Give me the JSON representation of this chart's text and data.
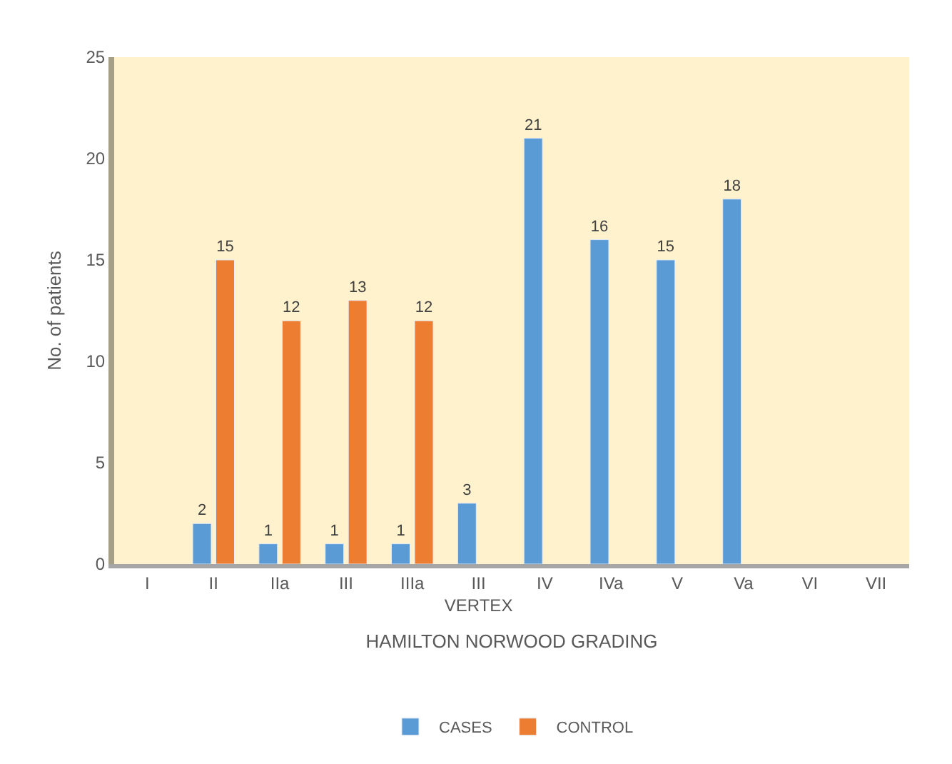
{
  "chart_data": {
    "type": "bar",
    "xlabel": "HAMILTON NORWOOD GRADING",
    "ylabel": "No. of patients",
    "categories": [
      "I",
      "II",
      "IIa",
      "III",
      "IIIa",
      "III VERTEX",
      "IV",
      "IVa",
      "V",
      "Va",
      "VI",
      "VII"
    ],
    "series": [
      {
        "name": "CASES",
        "color": "#5b9bd5",
        "values": [
          null,
          2,
          1,
          1,
          1,
          3,
          21,
          16,
          15,
          18,
          null,
          null
        ]
      },
      {
        "name": "CONTROL",
        "color": "#ed7d31",
        "values": [
          null,
          15,
          12,
          13,
          12,
          null,
          null,
          null,
          null,
          null,
          null,
          null
        ]
      }
    ],
    "ylim": [
      0,
      25
    ],
    "yticks": [
      0,
      5,
      10,
      15,
      20,
      25
    ],
    "grid": false,
    "legend": "bottom",
    "data_labels": true
  }
}
